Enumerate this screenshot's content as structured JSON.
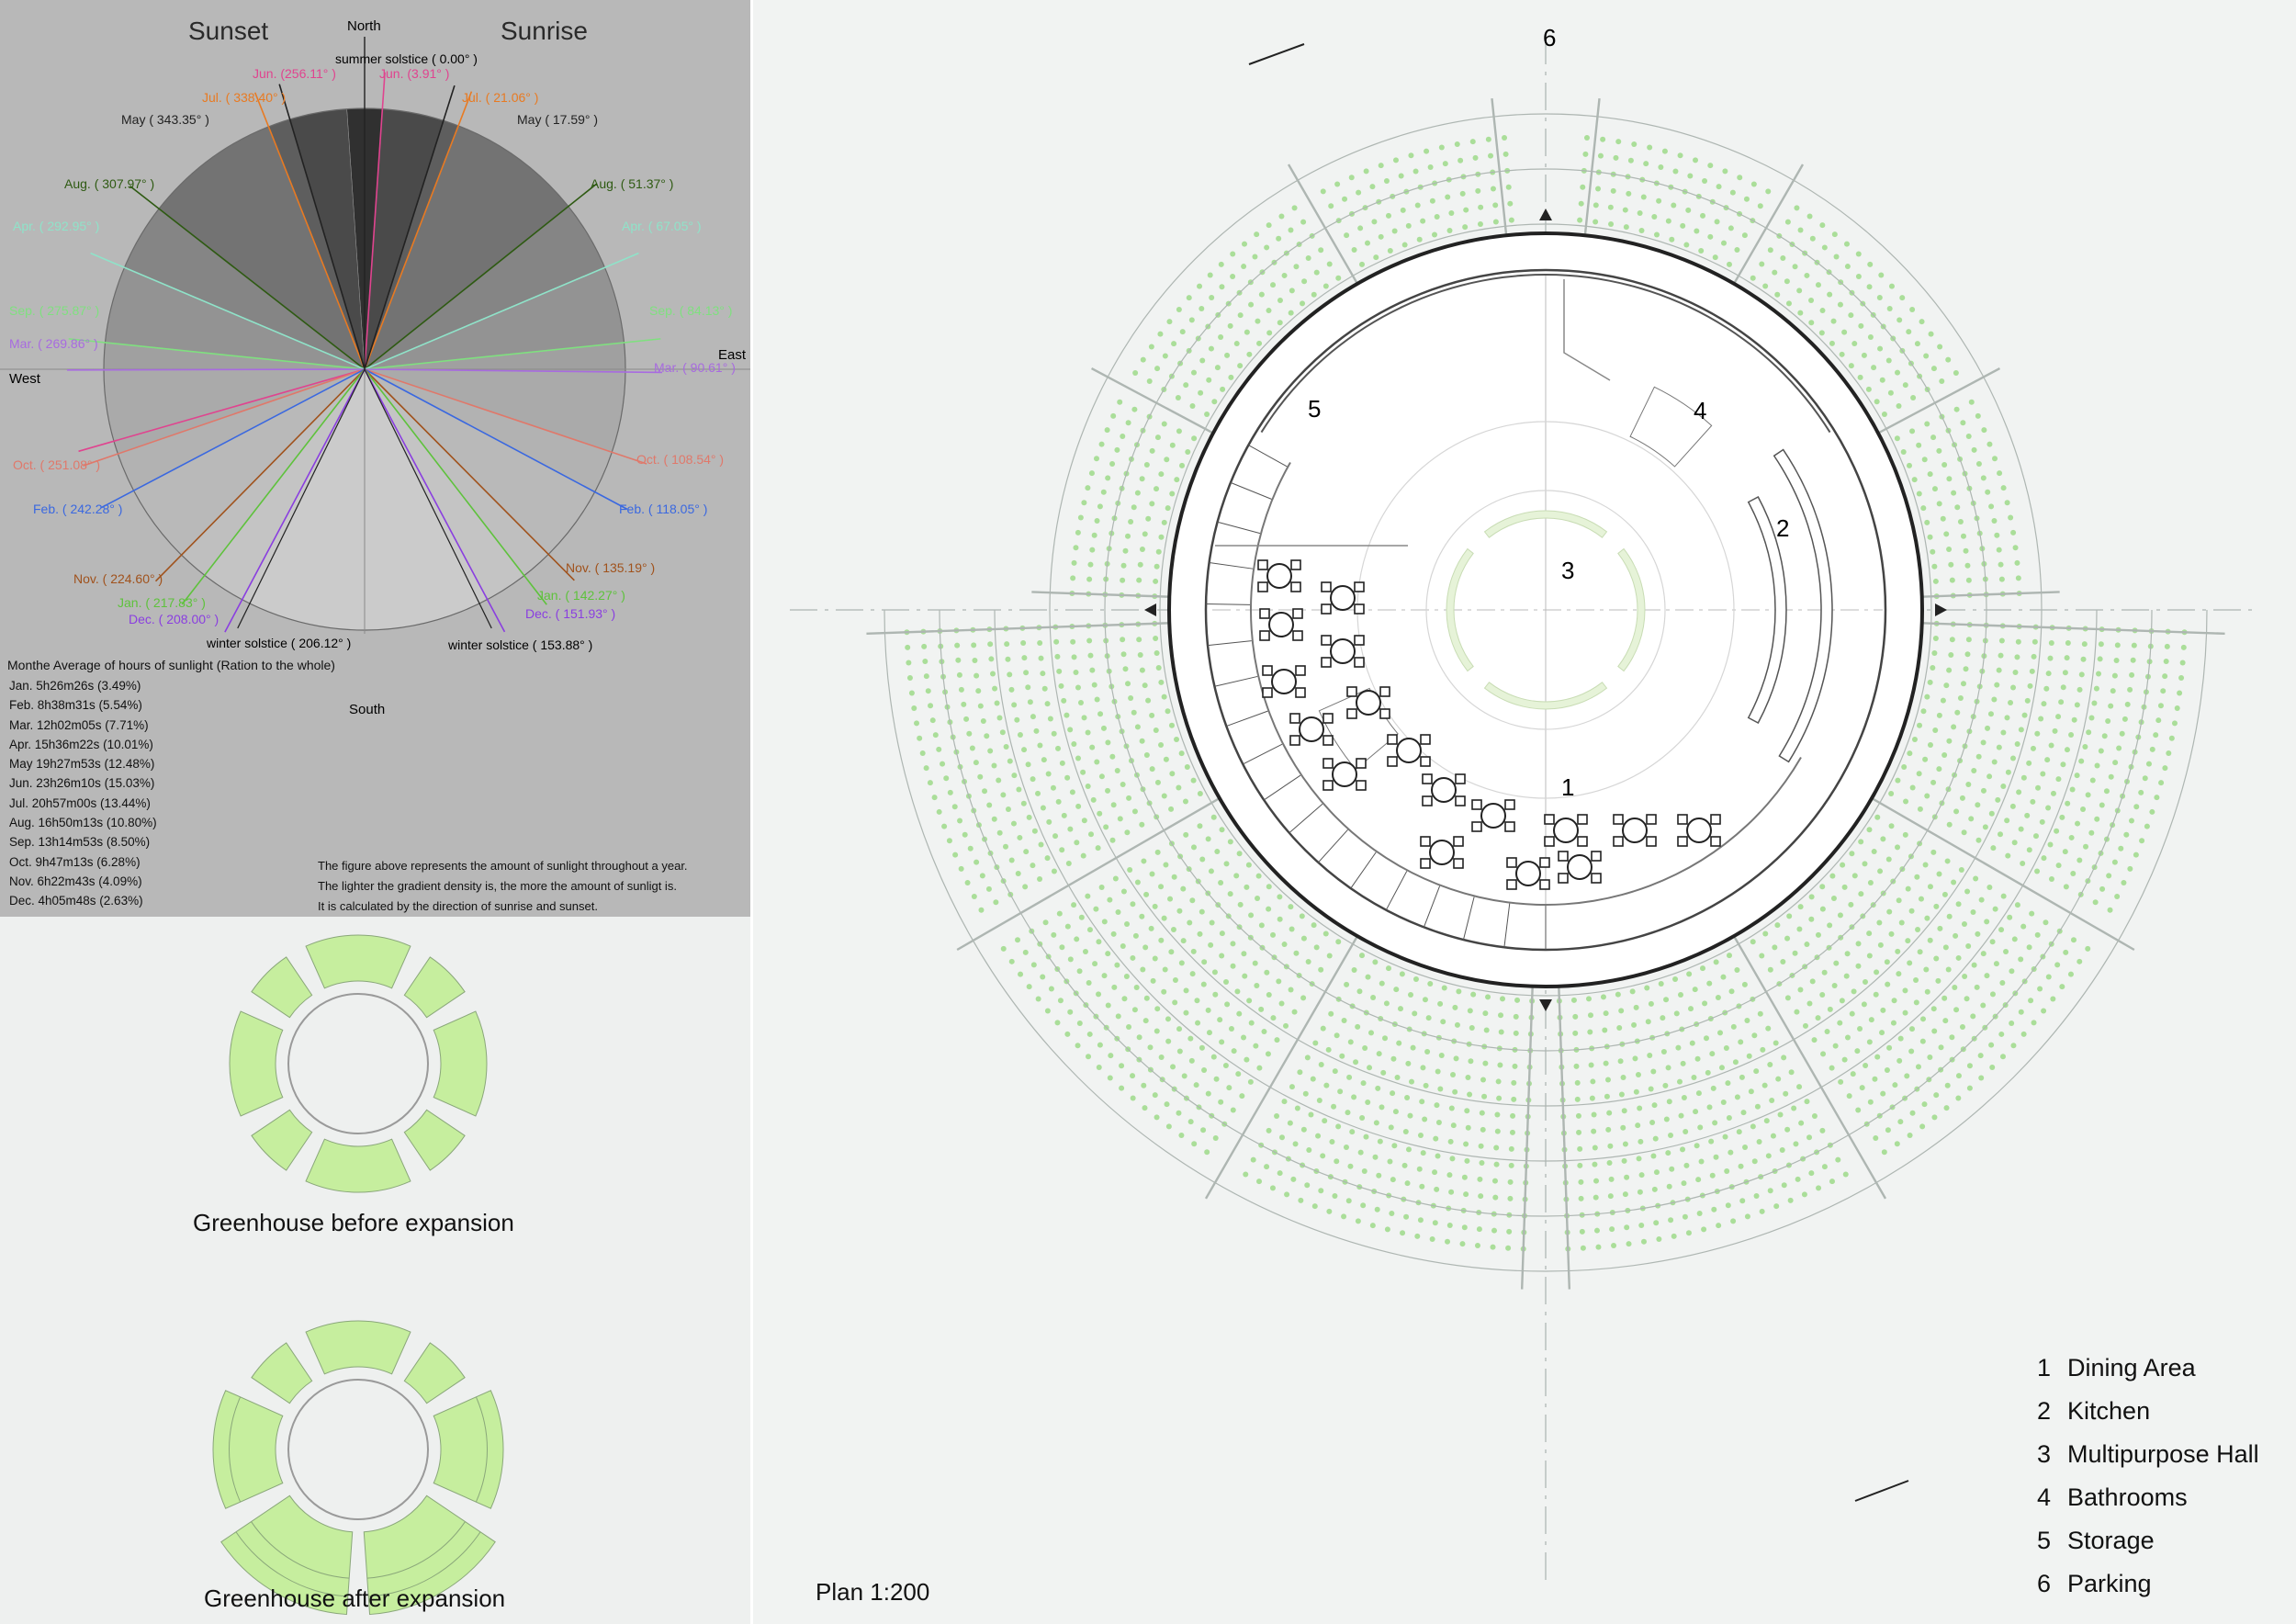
{
  "sunpath": {
    "sunset_label": "Sunset",
    "sunrise_label": "Sunrise",
    "north": "North",
    "south": "South",
    "east": "East",
    "west": "West",
    "summer_solstice": "summer solstice ( 0.00° )",
    "winter_solstice_left": "winter solstice ( 206.12° )",
    "winter_solstice_right": "winter solstice ( 153.88° )",
    "labels": [
      {
        "text": "Jun. (256.11° )",
        "color": "#e0448f"
      },
      {
        "text": "Jun. (3.91° )",
        "color": "#e0448f"
      },
      {
        "text": "Jul. ( 338.40° )",
        "color": "#e87a22"
      },
      {
        "text": "Jul. ( 21.06° )",
        "color": "#e87a22"
      },
      {
        "text": "May ( 343.35° )",
        "color": "#222222"
      },
      {
        "text": "May ( 17.59° )",
        "color": "#222222"
      },
      {
        "text": "Aug. ( 307.97° )",
        "color": "#2e5a12"
      },
      {
        "text": "Aug. ( 51.37° )",
        "color": "#2e5a12"
      },
      {
        "text": "Apr. ( 292.95° )",
        "color": "#8fe3c9"
      },
      {
        "text": "Apr. ( 67.05° )",
        "color": "#8fe3c9"
      },
      {
        "text": "Sep. ( 275.87° )",
        "color": "#7fe07f"
      },
      {
        "text": "Sep. ( 84.13° )",
        "color": "#7fe07f"
      },
      {
        "text": "Mar. ( 269.86° )",
        "color": "#a86be0"
      },
      {
        "text": "Mar. ( 90.61° )",
        "color": "#a86be0"
      },
      {
        "text": "Oct. ( 251.08° )",
        "color": "#e0786a"
      },
      {
        "text": "Oct. ( 108.54° )",
        "color": "#e0786a"
      },
      {
        "text": "Feb. ( 242.28° )",
        "color": "#3a68e0"
      },
      {
        "text": "Feb. ( 118.05° )",
        "color": "#3a68e0"
      },
      {
        "text": "Nov. ( 224.60° )",
        "color": "#a0521c"
      },
      {
        "text": "Nov. ( 135.19° )",
        "color": "#a0521c"
      },
      {
        "text": "Jan. ( 217.83° )",
        "color": "#5ec23c"
      },
      {
        "text": "Jan. ( 142.27° )",
        "color": "#5ec23c"
      },
      {
        "text": "Dec. ( 208.00° )",
        "color": "#8a3ee0"
      },
      {
        "text": "Dec. ( 151.93° )",
        "color": "#8a3ee0"
      }
    ],
    "stats_title": "Monthe Average of hours of sunlight (Ration to the whole)",
    "stats": [
      "Jan.  5h26m26s (3.49%)",
      "Feb.  8h38m31s (5.54%)",
      "Mar.  12h02m05s (7.71%)",
      "Apr.  15h36m22s (10.01%)",
      "May  19h27m53s (12.48%)",
      "Jun.  23h26m10s (15.03%)",
      "Jul.   20h57m00s (13.44%)",
      "Aug.  16h50m13s (10.80%)",
      "Sep.  13h14m53s (8.50%)",
      "Oct.  9h47m13s (6.28%)",
      "Nov.  6h22m43s (4.09%)",
      "Dec.  4h05m48s (2.63%)"
    ],
    "notes": [
      "The figure above represents the amount of sunlight throughout a year.",
      "The lighter the gradient density is, the more the amount of sunligt is.",
      "It is calculated by the direction of sunrise and sunset."
    ]
  },
  "greenhouse": {
    "before_caption": "Greenhouse before expansion",
    "after_caption": "Greenhouse after expansion",
    "fill_color": "#c6ee9e"
  },
  "plan": {
    "scale_label": "Plan  1:200",
    "zone_numbers": [
      "1",
      "2",
      "3",
      "4",
      "5",
      "6"
    ],
    "legend": [
      {
        "num": "1",
        "label": "Dining Area"
      },
      {
        "num": "2",
        "label": "Kitchen"
      },
      {
        "num": "3",
        "label": "Multipurpose Hall"
      },
      {
        "num": "4",
        "label": "Bathrooms"
      },
      {
        "num": "5",
        "label": "Storage"
      },
      {
        "num": "6",
        "label": "Parking"
      }
    ],
    "plant_color": "#9ed98a"
  }
}
